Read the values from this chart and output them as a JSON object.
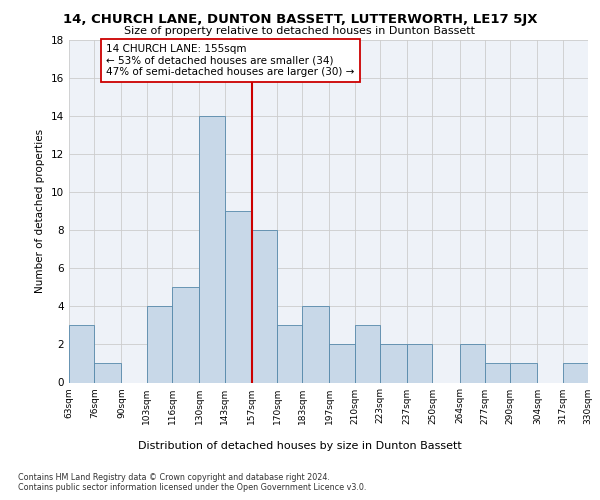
{
  "title": "14, CHURCH LANE, DUNTON BASSETT, LUTTERWORTH, LE17 5JX",
  "subtitle": "Size of property relative to detached houses in Dunton Bassett",
  "xlabel": "Distribution of detached houses by size in Dunton Bassett",
  "ylabel": "Number of detached properties",
  "bin_edges": [
    63,
    76,
    90,
    103,
    116,
    130,
    143,
    157,
    170,
    183,
    197,
    210,
    223,
    237,
    250,
    264,
    277,
    290,
    304,
    317,
    330
  ],
  "bin_labels": [
    "63sqm",
    "76sqm",
    "90sqm",
    "103sqm",
    "116sqm",
    "130sqm",
    "143sqm",
    "157sqm",
    "170sqm",
    "183sqm",
    "197sqm",
    "210sqm",
    "223sqm",
    "237sqm",
    "250sqm",
    "264sqm",
    "277sqm",
    "290sqm",
    "304sqm",
    "317sqm",
    "330sqm"
  ],
  "counts": [
    3,
    1,
    0,
    4,
    5,
    14,
    9,
    8,
    3,
    4,
    2,
    3,
    2,
    2,
    0,
    2,
    1,
    1,
    0,
    1
  ],
  "bar_color": "#c8d8e8",
  "bar_edge_color": "#5588aa",
  "vline_x": 157,
  "vline_color": "#cc0000",
  "annotation_text": "14 CHURCH LANE: 155sqm\n← 53% of detached houses are smaller (34)\n47% of semi-detached houses are larger (30) →",
  "annotation_box_color": "#ffffff",
  "annotation_box_edge_color": "#cc0000",
  "ylim": [
    0,
    18
  ],
  "yticks": [
    0,
    2,
    4,
    6,
    8,
    10,
    12,
    14,
    16,
    18
  ],
  "grid_color": "#cccccc",
  "background_color": "#eef2f8",
  "footer_line1": "Contains HM Land Registry data © Crown copyright and database right 2024.",
  "footer_line2": "Contains public sector information licensed under the Open Government Licence v3.0."
}
